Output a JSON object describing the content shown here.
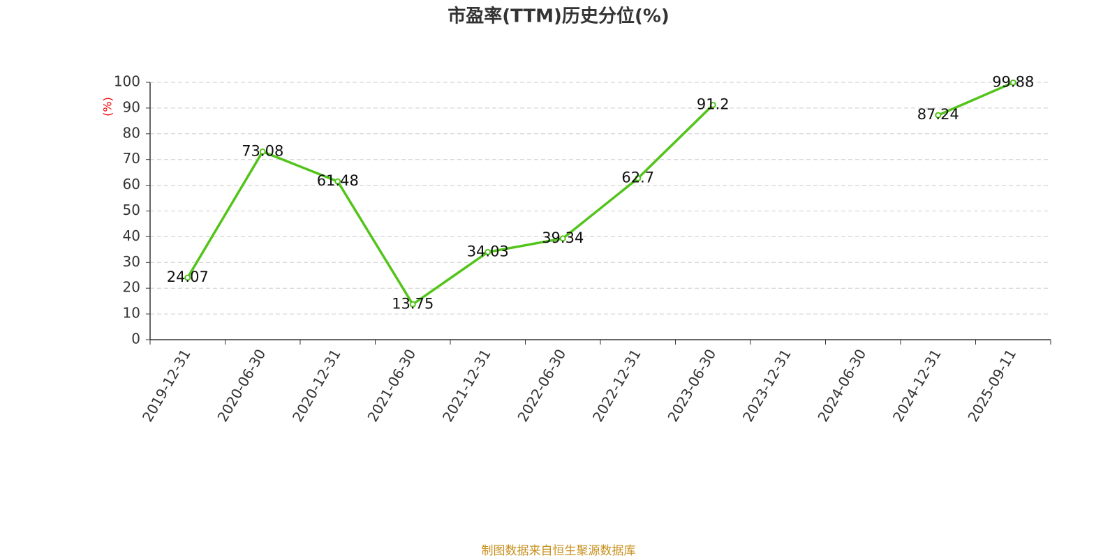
{
  "chart_data": {
    "type": "line",
    "title": "市盈率(TTM)历史分位(%)",
    "y_label": "(%)",
    "source": "制图数据来自恒生聚源数据库",
    "categories": [
      "2019-12-31",
      "2020-06-30",
      "2020-12-31",
      "2021-06-30",
      "2021-12-31",
      "2022-06-30",
      "2022-12-31",
      "2023-06-30",
      "2023-12-31",
      "2024-06-30",
      "2024-12-31",
      "2025-09-11"
    ],
    "series": [
      {
        "name": "市盈率(TTM)历史分位",
        "color": "#52c41a",
        "values": [
          24.07,
          73.08,
          61.48,
          13.75,
          34.03,
          39.34,
          62.7,
          91.2,
          null,
          null,
          87.24,
          99.88
        ]
      }
    ],
    "ylim": [
      0,
      100
    ],
    "yticks": [
      0,
      10,
      20,
      30,
      40,
      50,
      60,
      70,
      80,
      90,
      100
    ],
    "grid": true
  }
}
